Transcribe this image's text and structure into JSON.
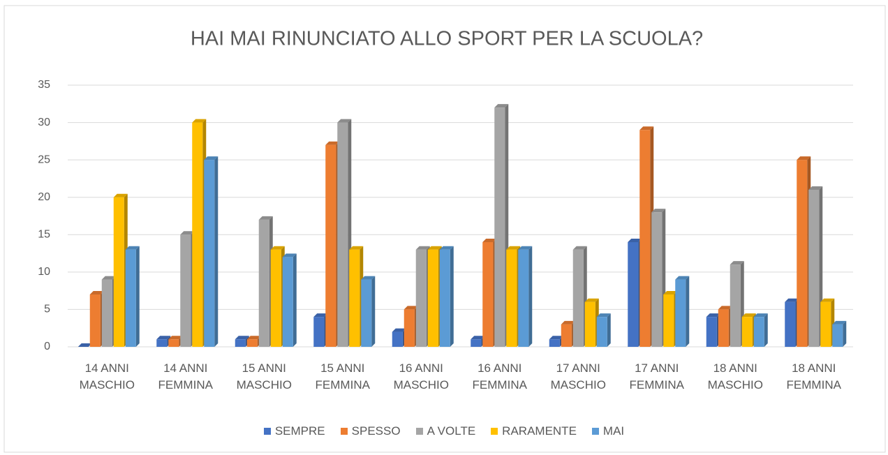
{
  "chart_data": {
    "type": "bar",
    "title": "HAI MAI RINUNCIATO ALLO SPORT PER LA SCUOLA?",
    "categories": [
      "14 ANNI MASCHIO",
      "14 ANNI FEMMINA",
      "15 ANNI MASCHIO",
      "15 ANNI FEMMINA",
      "16 ANNI MASCHIO",
      "16 ANNI FEMMINA",
      "17 ANNI MASCHIO",
      "17 ANNI FEMMINA",
      "18 ANNI MASCHIO",
      "18 ANNI FEMMINA"
    ],
    "series": [
      {
        "name": "SEMPRE",
        "color": "#4472c4",
        "values": [
          0,
          1,
          1,
          4,
          2,
          1,
          1,
          14,
          4,
          6
        ]
      },
      {
        "name": "SPESSO",
        "color": "#ed7d31",
        "values": [
          7,
          1,
          1,
          27,
          5,
          14,
          3,
          29,
          5,
          25
        ]
      },
      {
        "name": "A VOLTE",
        "color": "#a5a5a5",
        "values": [
          9,
          15,
          17,
          30,
          13,
          32,
          13,
          18,
          11,
          21
        ]
      },
      {
        "name": "RARAMENTE",
        "color": "#ffc000",
        "values": [
          20,
          30,
          13,
          13,
          13,
          13,
          6,
          7,
          4,
          6
        ]
      },
      {
        "name": "MAI",
        "color": "#5b9bd5",
        "values": [
          13,
          25,
          12,
          9,
          13,
          13,
          4,
          9,
          4,
          3
        ]
      }
    ],
    "ylim": [
      0,
      35
    ],
    "yticks": [
      0,
      5,
      10,
      15,
      20,
      25,
      30,
      35
    ],
    "grid": true,
    "legend": "bottom"
  }
}
